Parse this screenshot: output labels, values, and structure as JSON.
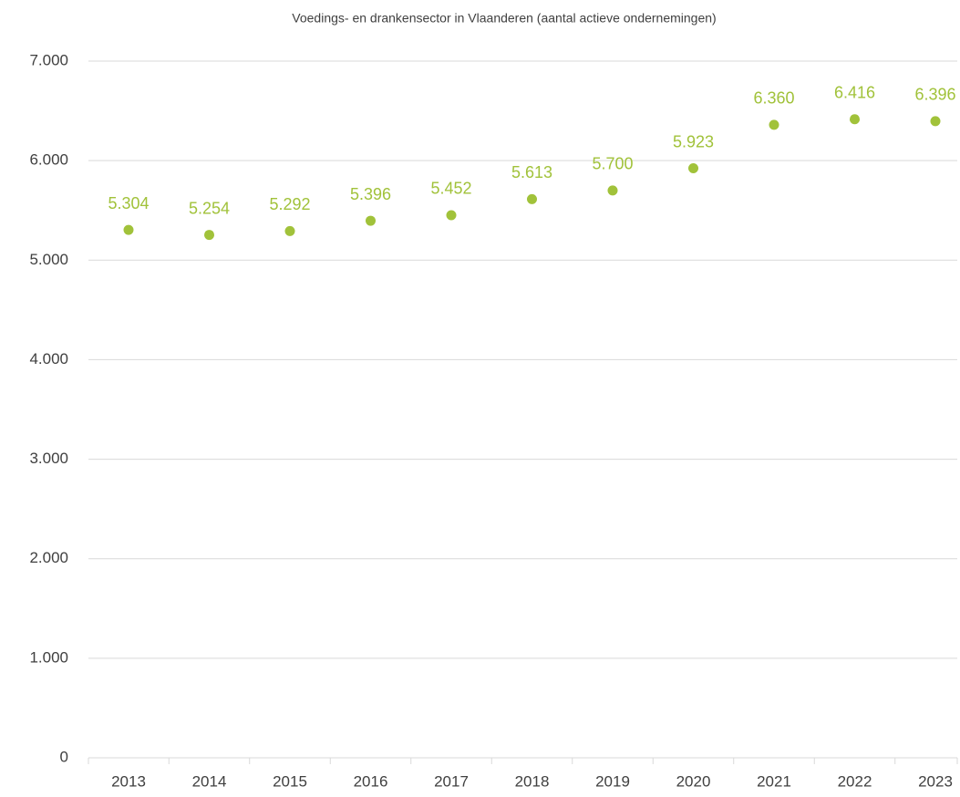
{
  "chart_data": {
    "type": "line",
    "title": "Voedings- en drankensector in Vlaanderen (aantal actieve ondernemingen)",
    "categories": [
      "2013",
      "2014",
      "2015",
      "2016",
      "2017",
      "2018",
      "2019",
      "2020",
      "2021",
      "2022",
      "2023"
    ],
    "series": [
      {
        "name": "Aantal actieve ondernemingen",
        "color": "#a1c23a",
        "values": [
          5304,
          5254,
          5292,
          5396,
          5452,
          5613,
          5700,
          5923,
          6360,
          6416,
          6396
        ],
        "value_labels": [
          "5.304",
          "5.254",
          "5.292",
          "5.396",
          "5.452",
          "5.613",
          "5.700",
          "5.923",
          "6.360",
          "6.416",
          "6.396"
        ]
      }
    ],
    "ylim": [
      0,
      7000
    ],
    "yticks": [
      0,
      {
        "value": 1000,
        "label": "1.000"
      },
      {
        "value": 2000,
        "label": "2.000"
      },
      {
        "value": 3000,
        "label": "3.000"
      },
      {
        "value": 4000,
        "label": "4.000"
      },
      {
        "value": 5000,
        "label": "5.000"
      },
      {
        "value": 6000,
        "label": "6.000"
      },
      {
        "value": 7000,
        "label": "7.000"
      }
    ],
    "grid": true
  }
}
